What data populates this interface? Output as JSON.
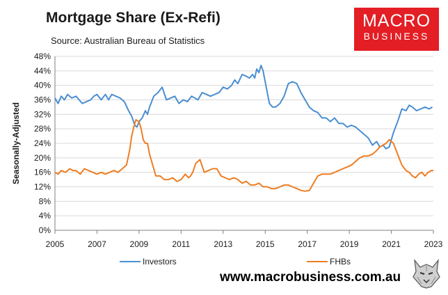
{
  "header": {
    "title": "Mortgage Share (Ex-Refi)",
    "subtitle": "Source: Australian Bureau of Statistics"
  },
  "logo": {
    "line1": "MACRO",
    "line2": "BUSINESS"
  },
  "footer": {
    "website": "www.macrobusiness.com.au"
  },
  "colors": {
    "investors": "#4a8ed0",
    "fhbs": "#ee7d22",
    "logo_bg": "#e31e24",
    "grid": "#d9d9d9"
  },
  "chart_data": {
    "type": "line",
    "title": "Mortgage Share (Ex-Refi)",
    "subtitle": "Source: Australian Bureau of Statistics",
    "ylabel": "Seasonally-Adjusted",
    "xlabel": "",
    "xlim": [
      2005,
      2023
    ],
    "ylim": [
      0,
      48
    ],
    "x_ticks": [
      2005,
      2007,
      2009,
      2011,
      2013,
      2015,
      2017,
      2019,
      2021,
      2023
    ],
    "y_ticks": [
      0,
      4,
      8,
      12,
      16,
      20,
      24,
      28,
      32,
      36,
      40,
      44,
      48
    ],
    "y_tick_suffix": "%",
    "grid": "horizontal",
    "legend_position": "bottom",
    "series": [
      {
        "name": "Investors",
        "color": "#4a8ed0",
        "x": [
          2005.0,
          2005.15,
          2005.3,
          2005.45,
          2005.6,
          2005.8,
          2006.0,
          2006.15,
          2006.3,
          2006.5,
          2006.7,
          2006.85,
          2007.0,
          2007.2,
          2007.4,
          2007.55,
          2007.7,
          2007.9,
          2008.1,
          2008.3,
          2008.5,
          2008.65,
          2008.8,
          2008.9,
          2009.0,
          2009.15,
          2009.3,
          2009.4,
          2009.5,
          2009.7,
          2009.9,
          2010.1,
          2010.3,
          2010.5,
          2010.7,
          2010.9,
          2011.1,
          2011.3,
          2011.5,
          2011.65,
          2011.8,
          2012.0,
          2012.2,
          2012.4,
          2012.6,
          2012.8,
          2013.0,
          2013.2,
          2013.4,
          2013.55,
          2013.7,
          2013.9,
          2014.1,
          2014.25,
          2014.4,
          2014.5,
          2014.6,
          2014.7,
          2014.8,
          2014.9,
          2015.0,
          2015.1,
          2015.2,
          2015.35,
          2015.5,
          2015.7,
          2015.9,
          2016.1,
          2016.3,
          2016.5,
          2016.7,
          2016.9,
          2017.1,
          2017.3,
          2017.5,
          2017.7,
          2017.9,
          2018.1,
          2018.3,
          2018.5,
          2018.7,
          2018.9,
          2019.1,
          2019.3,
          2019.5,
          2019.7,
          2019.9,
          2020.1,
          2020.3,
          2020.45,
          2020.6,
          2020.75,
          2020.9,
          2021.1,
          2021.3,
          2021.5,
          2021.7,
          2021.85,
          2022.0,
          2022.2,
          2022.4,
          2022.6,
          2022.8,
          2022.95
        ],
        "values": [
          36.5,
          35.0,
          37.0,
          36.0,
          37.5,
          36.5,
          37.0,
          36.0,
          35.0,
          35.5,
          36.0,
          37.0,
          37.5,
          36.0,
          37.5,
          36.0,
          37.5,
          37.0,
          36.5,
          35.5,
          33.0,
          31.5,
          29.0,
          28.5,
          30.0,
          31.0,
          33.0,
          32.0,
          34.0,
          37.0,
          38.0,
          39.5,
          36.0,
          36.5,
          37.0,
          35.0,
          36.0,
          35.5,
          37.0,
          36.5,
          36.0,
          38.0,
          37.5,
          37.0,
          37.5,
          38.0,
          39.5,
          39.0,
          40.0,
          41.5,
          40.5,
          43.0,
          42.5,
          42.0,
          43.0,
          42.0,
          44.5,
          43.5,
          45.5,
          44.0,
          41.0,
          38.0,
          35.0,
          34.0,
          34.0,
          35.0,
          37.0,
          40.5,
          41.0,
          40.5,
          38.0,
          36.0,
          34.0,
          33.0,
          32.5,
          31.0,
          31.0,
          30.0,
          31.0,
          29.5,
          29.5,
          28.5,
          29.0,
          28.5,
          27.5,
          26.5,
          25.5,
          23.5,
          24.5,
          23.0,
          23.5,
          22.5,
          23.0,
          27.0,
          30.0,
          33.5,
          33.0,
          34.5,
          34.0,
          33.0,
          33.5,
          34.0,
          33.5,
          34.0
        ]
      },
      {
        "name": "FHBs",
        "color": "#ee7d22",
        "x": [
          2005.0,
          2005.15,
          2005.3,
          2005.5,
          2005.7,
          2005.85,
          2006.0,
          2006.2,
          2006.4,
          2006.6,
          2006.8,
          2007.0,
          2007.2,
          2007.4,
          2007.6,
          2007.8,
          2008.0,
          2008.2,
          2008.4,
          2008.55,
          2008.65,
          2008.75,
          2008.85,
          2009.0,
          2009.1,
          2009.2,
          2009.3,
          2009.4,
          2009.5,
          2009.6,
          2009.7,
          2009.8,
          2010.0,
          2010.2,
          2010.4,
          2010.6,
          2010.8,
          2011.0,
          2011.2,
          2011.35,
          2011.45,
          2011.55,
          2011.7,
          2011.9,
          2012.1,
          2012.3,
          2012.5,
          2012.7,
          2012.9,
          2013.1,
          2013.3,
          2013.5,
          2013.7,
          2013.9,
          2014.1,
          2014.3,
          2014.5,
          2014.7,
          2014.9,
          2015.1,
          2015.3,
          2015.5,
          2015.7,
          2015.9,
          2016.1,
          2016.3,
          2016.5,
          2016.7,
          2016.9,
          2017.1,
          2017.3,
          2017.5,
          2017.7,
          2017.9,
          2018.1,
          2018.3,
          2018.5,
          2018.7,
          2018.9,
          2019.1,
          2019.3,
          2019.5,
          2019.7,
          2019.9,
          2020.1,
          2020.3,
          2020.45,
          2020.6,
          2020.75,
          2020.9,
          2021.1,
          2021.3,
          2021.5,
          2021.7,
          2021.85,
          2022.0,
          2022.15,
          2022.3,
          2022.45,
          2022.6,
          2022.75,
          2022.9,
          2023.0
        ],
        "values": [
          16.0,
          15.5,
          16.5,
          16.0,
          17.0,
          16.5,
          16.5,
          15.5,
          17.0,
          16.5,
          16.0,
          15.5,
          16.0,
          15.5,
          16.0,
          16.5,
          16.0,
          17.0,
          18.0,
          22.0,
          26.0,
          28.5,
          30.5,
          30.0,
          28.0,
          25.0,
          24.0,
          24.0,
          21.0,
          19.0,
          17.0,
          15.0,
          15.0,
          14.0,
          14.0,
          14.5,
          13.5,
          14.0,
          15.5,
          14.5,
          15.0,
          16.0,
          18.5,
          19.5,
          16.0,
          16.5,
          17.0,
          17.0,
          15.0,
          14.5,
          14.0,
          14.5,
          14.0,
          13.0,
          13.5,
          12.5,
          12.5,
          13.0,
          12.0,
          12.0,
          11.5,
          11.5,
          12.0,
          12.5,
          12.5,
          12.0,
          11.5,
          11.0,
          10.8,
          11.0,
          13.0,
          15.0,
          15.5,
          15.5,
          15.5,
          16.0,
          16.5,
          17.0,
          17.5,
          18.0,
          19.0,
          20.0,
          20.5,
          20.5,
          21.0,
          22.0,
          23.0,
          23.5,
          24.0,
          25.0,
          24.0,
          21.0,
          18.0,
          16.5,
          16.0,
          15.0,
          14.5,
          15.5,
          16.0,
          15.0,
          16.0,
          16.5,
          16.5
        ]
      }
    ]
  }
}
